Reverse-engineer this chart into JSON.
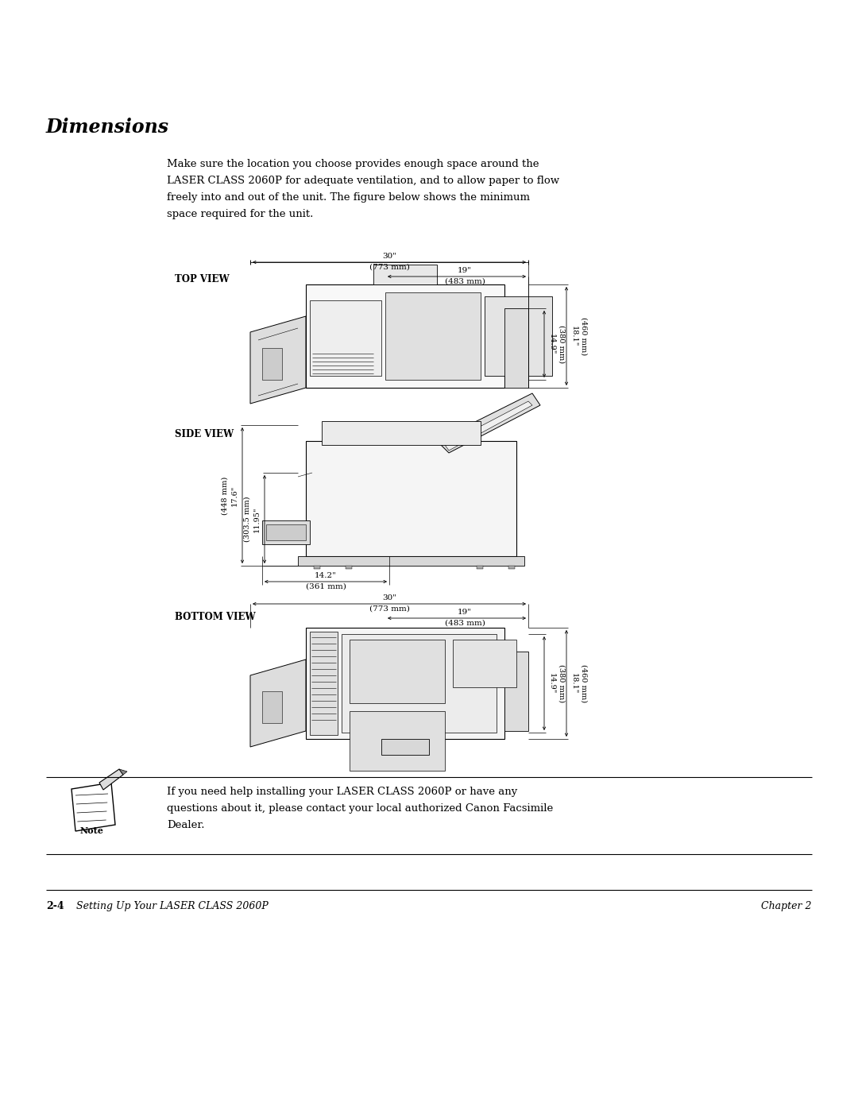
{
  "title": "Dimensions",
  "bg_color": "#ffffff",
  "text_color": "#000000",
  "page_width": 10.8,
  "page_height": 13.97,
  "intro_text_lines": [
    "Make sure the location you choose provides enough space around the",
    "LASER CLASS 2060P for adequate ventilation, and to allow paper to flow",
    "freely into and out of the unit. The figure below shows the minimum",
    "space required for the unit."
  ],
  "top_view_label": "TOP VIEW",
  "side_view_label": "SIDE VIEW",
  "bottom_view_label": "BOTTOM VIEW",
  "note_text_lines": [
    "If you need help installing your LASER CLASS 2060P or have any",
    "questions about it, please contact your local authorized Canon Facsimile",
    "Dealer."
  ],
  "note_label": "Note",
  "footer_left": "2-4",
  "footer_left2": "Setting Up Your LASER CLASS 2060P",
  "footer_right": "Chapter 2",
  "dims": {
    "top_30in": "30\"",
    "top_773mm": "(773 mm)",
    "top_19in": "19\"",
    "top_483mm": "(483 mm)",
    "right_149in": "14.9\"",
    "right_380mm": "(380 mm)",
    "right_181in": "18.1\"",
    "right_460mm": "(460 mm)",
    "side_176in": "17.6\"",
    "side_448mm": "(448 mm)",
    "side_1195in": "11.95\"",
    "side_3035mm": "(303.5 mm)",
    "side_142in": "14.2\"",
    "side_361mm": "(361 mm)"
  }
}
